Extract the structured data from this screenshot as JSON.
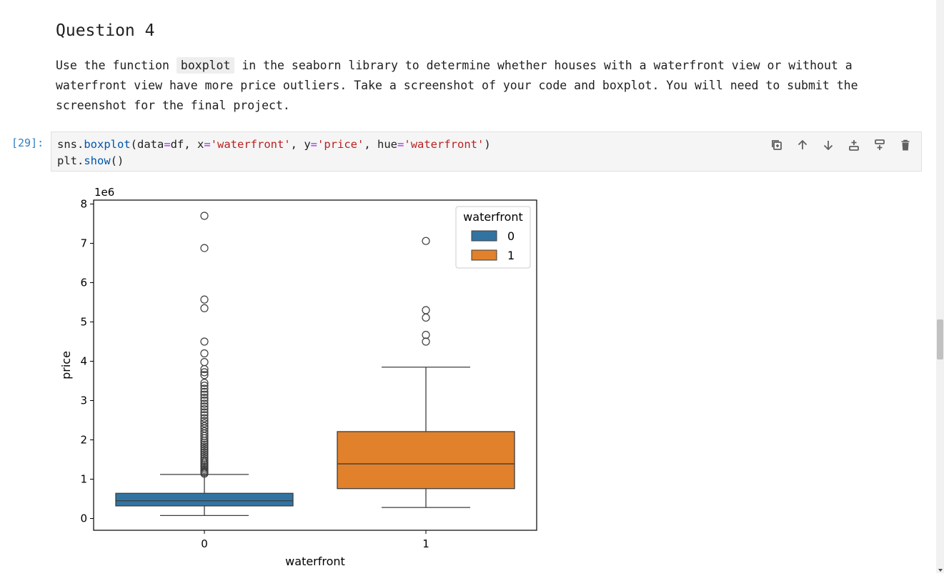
{
  "markdown": {
    "heading": "Question 4",
    "para_before": "Use the function ",
    "code_word": "boxplot",
    "para_after": " in the seaborn library to determine whether houses with a waterfront view or without a waterfront view have more price outliers. Take a screenshot of your code and boxplot. You will need to submit the screenshot for the final project."
  },
  "cell": {
    "prompt": "[29]:",
    "line1": {
      "p1": "sns.",
      "fn1": "boxplot",
      "p2": "(data",
      "eq1": "=",
      "p3": "df, x",
      "eq2": "=",
      "s1": "'waterfront'",
      "p4": ", y",
      "eq3": "=",
      "s2": "'price'",
      "p5": ", hue",
      "eq4": "=",
      "s3": "'waterfront'",
      "p6": ")"
    },
    "line2": {
      "p1": "plt.",
      "fn1": "show",
      "p2": "()"
    }
  },
  "toolbar": {
    "icons": [
      "duplicate-icon",
      "move-up-icon",
      "move-down-icon",
      "insert-above-icon",
      "insert-below-icon",
      "delete-icon"
    ]
  },
  "chart_data": {
    "type": "box",
    "xlabel": "waterfront",
    "ylabel": "price",
    "y_offset_label": "1e6",
    "ylim": [
      -0.3,
      8.1
    ],
    "y_ticks": [
      0,
      1,
      2,
      3,
      4,
      5,
      6,
      7,
      8
    ],
    "categories": [
      "0",
      "1"
    ],
    "legend": {
      "title": "waterfront",
      "placement": "top-right",
      "entries": [
        "0",
        "1"
      ]
    },
    "series": [
      {
        "name": "0",
        "color": "#3274a1",
        "whisker_low": 0.075,
        "q1": 0.32,
        "median": 0.45,
        "q3": 0.64,
        "whisker_high": 1.12,
        "outliers": [
          7.7,
          6.88,
          5.57,
          5.35,
          4.5,
          4.2,
          3.98,
          3.8,
          3.72,
          3.65,
          3.45,
          3.38,
          3.3,
          3.22,
          3.15,
          3.07,
          3.0,
          2.92,
          2.85,
          2.78,
          2.7,
          2.63,
          2.55,
          2.48,
          2.42,
          2.35,
          2.29,
          2.22,
          2.16,
          2.1,
          2.04,
          1.98,
          1.93,
          1.88,
          1.83,
          1.78,
          1.73,
          1.68,
          1.63,
          1.58,
          1.53,
          1.48,
          1.44,
          1.4,
          1.36,
          1.32,
          1.28,
          1.24,
          1.2,
          1.17,
          1.14
        ]
      },
      {
        "name": "1",
        "color": "#e1812c",
        "whisker_low": 0.28,
        "q1": 0.76,
        "median": 1.39,
        "q3": 2.21,
        "whisker_high": 3.85,
        "outliers": [
          7.06,
          5.3,
          5.11,
          4.67,
          4.5
        ]
      }
    ]
  }
}
